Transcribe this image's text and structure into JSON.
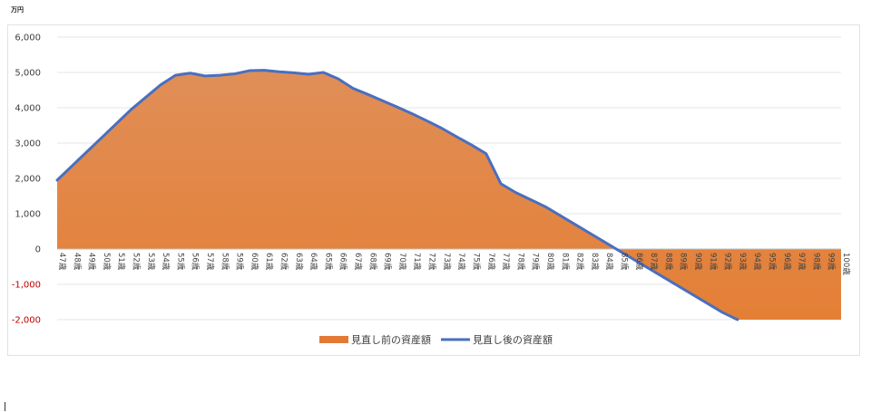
{
  "unit": "万円",
  "chart_data": {
    "type": "area",
    "ylim": [
      -2000,
      6000
    ],
    "yticks": [
      -2000,
      -1000,
      0,
      1000,
      2000,
      3000,
      4000,
      5000,
      6000
    ],
    "ytick_labels": [
      "-2,000",
      "-1,000",
      "0",
      "1,000",
      "2,000",
      "3,000",
      "4,000",
      "5,000",
      "6,000"
    ],
    "grid": true,
    "legend_position": "bottom",
    "categories": [
      "47歳",
      "48歳",
      "49歳",
      "50歳",
      "51歳",
      "52歳",
      "53歳",
      "54歳",
      "55歳",
      "56歳",
      "57歳",
      "58歳",
      "59歳",
      "60歳",
      "61歳",
      "62歳",
      "63歳",
      "64歳",
      "65歳",
      "66歳",
      "67歳",
      "68歳",
      "69歳",
      "70歳",
      "71歳",
      "72歳",
      "73歳",
      "74歳",
      "75歳",
      "76歳",
      "77歳",
      "78歳",
      "79歳",
      "80歳",
      "81歳",
      "82歳",
      "83歳",
      "84歳",
      "85歳",
      "86歳",
      "87歳",
      "88歳",
      "89歳",
      "90歳",
      "91歳",
      "92歳",
      "93歳",
      "94歳",
      "95歳",
      "96歳",
      "97歳",
      "98歳",
      "99歳",
      "100歳"
    ],
    "series": [
      {
        "name": "見直し前の資産額",
        "kind": "area",
        "color": "#e27a36",
        "values": [
          1950,
          2350,
          2750,
          3150,
          3550,
          3950,
          4300,
          4650,
          4920,
          4980,
          4900,
          4920,
          4960,
          5050,
          5060,
          5020,
          4990,
          4950,
          5000,
          4820,
          4550,
          4380,
          4200,
          4020,
          3830,
          3630,
          3420,
          3180,
          2950,
          2700,
          1850,
          1600,
          1400,
          1200,
          950,
          700,
          450,
          200,
          -50,
          -300,
          -550,
          -800,
          -1050,
          -1300,
          -1550,
          -1800,
          -2000,
          -2000,
          -2000,
          -2000,
          -2000,
          -2000,
          -2000,
          -2000
        ]
      },
      {
        "name": "見直し後の資産額",
        "kind": "line",
        "color": "#4a6fbe",
        "values": [
          1950,
          2350,
          2750,
          3150,
          3550,
          3950,
          4300,
          4650,
          4920,
          4980,
          4900,
          4920,
          4960,
          5050,
          5060,
          5020,
          4990,
          4950,
          5000,
          4820,
          4550,
          4380,
          4200,
          4020,
          3830,
          3630,
          3420,
          3180,
          2950,
          2700,
          1850,
          1600,
          1400,
          1200,
          950,
          700,
          450,
          200,
          -50,
          -300,
          -550,
          -800,
          -1050,
          -1300,
          -1550,
          -1800,
          -2000,
          null,
          null,
          null,
          null,
          null,
          null,
          null
        ]
      }
    ]
  }
}
